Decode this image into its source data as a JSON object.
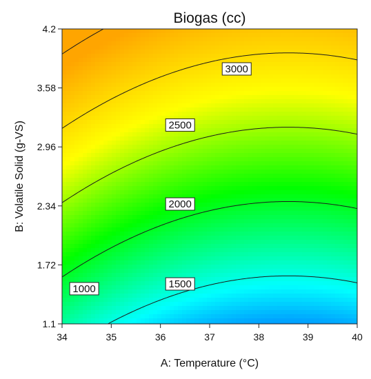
{
  "chart_data": {
    "type": "contour",
    "title": "Biogas (cc)",
    "xlabel": "A: Temperature (°C)",
    "ylabel": "B: Volatile Solid (g-VS)",
    "xlim": [
      34,
      40
    ],
    "ylim": [
      1.1,
      4.2
    ],
    "x_ticks": [
      "34",
      "35",
      "36",
      "37",
      "38",
      "39",
      "40"
    ],
    "y_ticks": [
      "1.1",
      "1.72",
      "2.34",
      "2.96",
      "3.58",
      "4.2"
    ],
    "colormap": [
      "#0000ff",
      "#00ffff",
      "#00ff00",
      "#ffff00",
      "#ffa500"
    ],
    "contour_levels": [
      {
        "value": 1000,
        "label": "1000",
        "label_at": [
          34.45,
          1.47
        ]
      },
      {
        "value": 1500,
        "label": "1500",
        "label_at": [
          36.4,
          1.52
        ]
      },
      {
        "value": 2000,
        "label": "2000",
        "label_at": [
          36.4,
          2.36
        ]
      },
      {
        "value": 2500,
        "label": "2500",
        "label_at": [
          36.4,
          3.19
        ]
      },
      {
        "value": 3000,
        "label": "3000",
        "label_at": [
          37.55,
          3.78
        ]
      }
    ],
    "grid": false,
    "legend": "none"
  }
}
